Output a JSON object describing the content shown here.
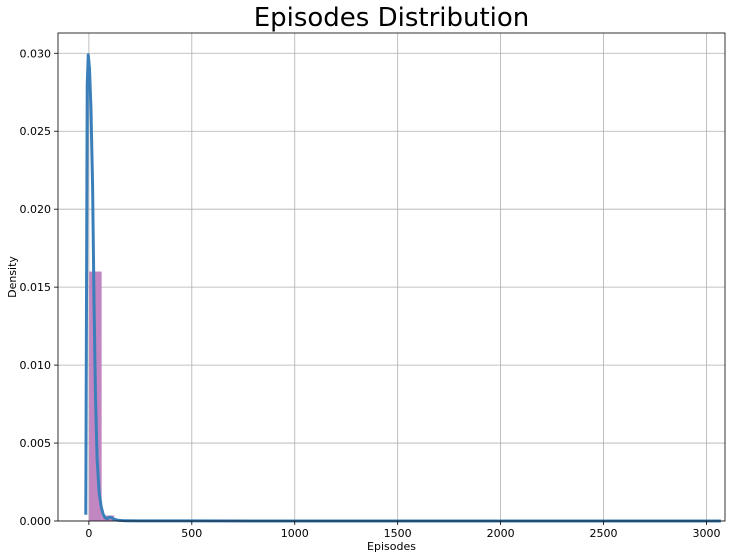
{
  "chart_data": {
    "type": "histogram",
    "title": "Episodes Distribution",
    "xlabel": "Episodes",
    "ylabel": "Density",
    "xlim": [
      -150,
      3090
    ],
    "ylim": [
      0,
      0.0313
    ],
    "grid": true,
    "x_ticks": [
      0,
      500,
      1000,
      1500,
      2000,
      2500,
      3000
    ],
    "x_tick_labels": [
      "0",
      "500",
      "1000",
      "1500",
      "2000",
      "2500",
      "3000"
    ],
    "y_ticks": [
      0,
      0.005,
      0.01,
      0.015,
      0.02,
      0.025,
      0.03
    ],
    "y_tick_labels": [
      "0.000",
      "0.005",
      "0.010",
      "0.015",
      "0.020",
      "0.025",
      "0.030"
    ],
    "histogram": {
      "color": "#bf7fbf",
      "bins": [
        {
          "x0": 1,
          "x1": 62,
          "density": 0.016
        },
        {
          "x0": 62,
          "x1": 123,
          "density": 0.00035
        },
        {
          "x0": 123,
          "x1": 184,
          "density": 6e-05
        }
      ]
    },
    "kde": {
      "color": "#3a7fba",
      "x": [
        -15,
        -8,
        -3,
        3,
        10,
        18,
        25,
        32,
        40,
        50,
        60,
        70,
        80,
        90,
        100,
        110,
        120,
        140,
        170,
        250,
        500,
        1000,
        2000,
        3070
      ],
      "y": [
        0.0004,
        0.028,
        0.0299,
        0.029,
        0.0265,
        0.0215,
        0.014,
        0.008,
        0.004,
        0.0018,
        0.0009,
        0.0004,
        0.0002,
        0.00015,
        0.00025,
        0.00022,
        0.00012,
        5e-05,
        2e-05,
        1e-05,
        5e-06,
        2e-06,
        1e-06,
        5e-07
      ]
    }
  }
}
